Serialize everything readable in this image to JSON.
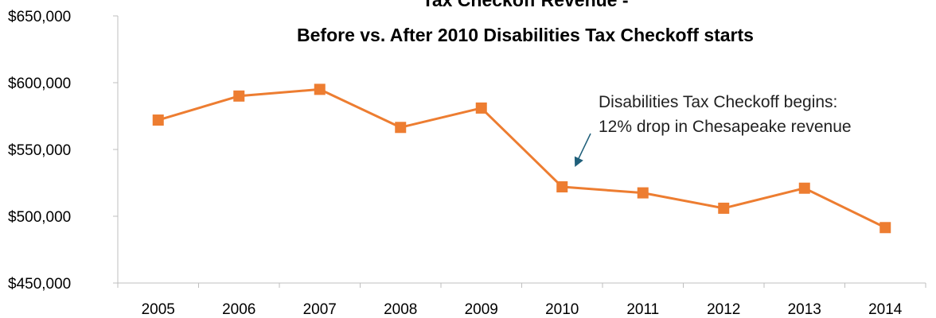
{
  "chart_data": {
    "type": "line",
    "title_line1": "Tax Checkoff Revenue -",
    "title_line2": "Before vs. After 2010 Disabilities Tax Checkoff starts",
    "xlabel": "",
    "ylabel": "",
    "categories": [
      "2005",
      "2006",
      "2007",
      "2008",
      "2009",
      "2010",
      "2011",
      "2012",
      "2013",
      "2014"
    ],
    "series": [
      {
        "values": [
          572000,
          590000,
          595000,
          566500,
          581000,
          522000,
          517500,
          506000,
          521000,
          491500
        ]
      }
    ],
    "ylim": [
      450000,
      650000
    ],
    "yticks": [
      450000,
      500000,
      550000,
      600000,
      650000
    ],
    "ytick_labels": [
      "$450,000",
      "$500,000",
      "$550,000",
      "$600,000",
      "$650,000"
    ],
    "grid": false,
    "legend": "none",
    "annotation": {
      "line1": "Disabilities Tax Checkoff begins:",
      "line2": "12% drop in Chesapeake revenue",
      "target_category": "2010"
    },
    "colors": {
      "series": "#ED7D31",
      "axis": "#BFBFBF",
      "arrow": "#1F5F7A"
    }
  }
}
